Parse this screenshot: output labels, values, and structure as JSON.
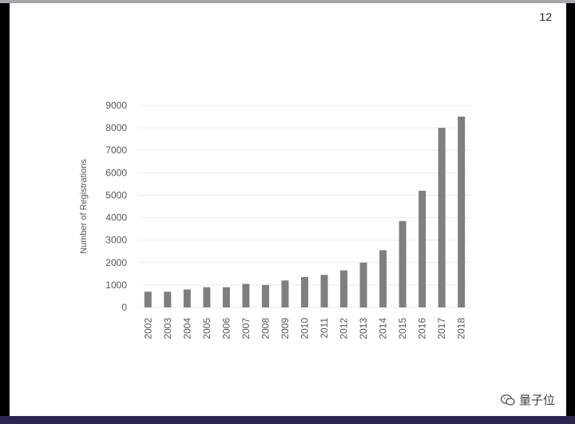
{
  "page_number": "12",
  "watermark": {
    "text": "量子位",
    "icon": "wechat-icon"
  },
  "colors": {
    "bar": "#7f7f7f",
    "gridline": "#ececec",
    "text": "#555555"
  },
  "chart_data": {
    "type": "bar",
    "title": "",
    "xlabel": "",
    "ylabel": "Number of Registrations",
    "categories": [
      "2002",
      "2003",
      "2004",
      "2005",
      "2006",
      "2007",
      "2008",
      "2009",
      "2010",
      "2011",
      "2012",
      "2013",
      "2014",
      "2015",
      "2016",
      "2017",
      "2018"
    ],
    "values": [
      700,
      700,
      800,
      900,
      900,
      1050,
      1000,
      1200,
      1350,
      1450,
      1650,
      2000,
      2550,
      3850,
      5200,
      8000,
      8500
    ],
    "ylim": [
      0,
      9000
    ],
    "yticks": [
      "0",
      "1000",
      "2000",
      "3000",
      "4000",
      "5000",
      "6000",
      "7000",
      "8000",
      "9000"
    ],
    "grid": true,
    "legend": "none"
  }
}
